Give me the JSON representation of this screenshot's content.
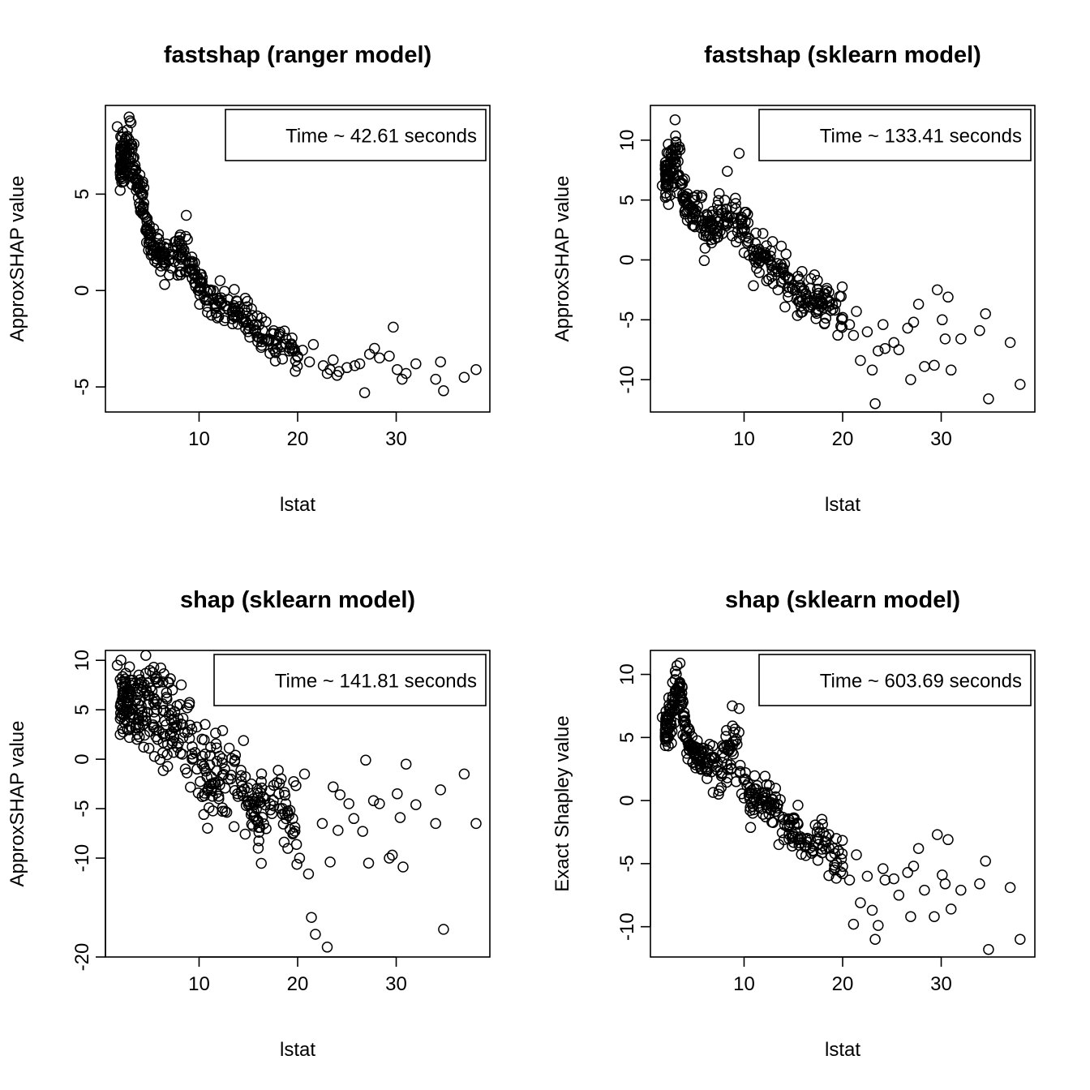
{
  "chart_data": [
    {
      "type": "scatter",
      "title": "fastshap (ranger model)",
      "xlabel": "lstat",
      "ylabel": "ApproxSHAP value",
      "legend": "Time ~ 42.61 seconds",
      "legend_position": "top-right",
      "xlim": [
        0.5,
        39.5
      ],
      "ylim": [
        -6.3,
        9.6
      ],
      "xticks": [
        10,
        20,
        30
      ],
      "yticks": [
        -5,
        0,
        5
      ],
      "grid": false,
      "seed": 11,
      "x": [
        1.7,
        2.0,
        2.1,
        2.3,
        2.5,
        2.7,
        2.9,
        3.0,
        3.1,
        3.2,
        3.3,
        3.4,
        3.5,
        3.6,
        3.8,
        4.0,
        4.3,
        4.6,
        4.8,
        5.0,
        5.3,
        5.6,
        6.0,
        6.5,
        7.0,
        7.5,
        8.0,
        8.7,
        9.0,
        9.5,
        10.0,
        10.5,
        11.0,
        11.6,
        12.3,
        13.0,
        13.7,
        14.3,
        15.0,
        15.7,
        16.4,
        17.1,
        17.8,
        18.4,
        19.2,
        20.0,
        20.5,
        21.2,
        21.6,
        22.6,
        23.0,
        23.3,
        23.6,
        24.0,
        24.2,
        25.0,
        25.8,
        26.3,
        26.8,
        27.3,
        27.8,
        28.3,
        29.3,
        29.7,
        30.1,
        30.6,
        31.0,
        32.0,
        34.0,
        34.5,
        34.8,
        36.9,
        38.1
      ],
      "y": [
        8.5,
        5.2,
        7.5,
        6.3,
        6.0,
        8.0,
        9.0,
        6.7,
        8.7,
        5.5,
        6.3,
        7.6,
        6.5,
        5.8,
        5.3,
        6.0,
        4.3,
        3.8,
        3.2,
        2.7,
        2.4,
        2.2,
        2.0,
        1.8,
        1.6,
        1.5,
        1.3,
        3.9,
        1.0,
        0.8,
        0.0,
        -0.3,
        -0.5,
        -0.7,
        -0.6,
        -1.0,
        -1.1,
        -1.4,
        -1.8,
        -2.1,
        -2.5,
        -2.6,
        -2.6,
        -2.8,
        -3.0,
        -3.4,
        -3.1,
        -3.7,
        -2.8,
        -3.9,
        -4.3,
        -4.1,
        -3.6,
        -4.4,
        -4.2,
        -4.0,
        -3.9,
        -3.8,
        -5.3,
        -3.3,
        -3.0,
        -3.5,
        -3.4,
        -1.9,
        -4.1,
        -4.6,
        -4.3,
        -3.8,
        -4.6,
        -3.7,
        -5.2,
        -4.5,
        -4.1
      ]
    },
    {
      "type": "scatter",
      "title": "fastshap (sklearn model)",
      "xlabel": "lstat",
      "ylabel": "ApproxSHAP value",
      "legend": "Time ~ 133.41 seconds",
      "legend_position": "top-right",
      "xlim": [
        0.5,
        39.5
      ],
      "ylim": [
        -12.7,
        12.9
      ],
      "xticks": [
        10,
        20,
        30
      ],
      "yticks": [
        -10,
        -5,
        0,
        5,
        10
      ],
      "grid": false,
      "seed": 23,
      "x": [
        1.7,
        2.0,
        2.5,
        2.8,
        3.0,
        3.2,
        3.5,
        3.8,
        4.0,
        4.3,
        4.6,
        5.0,
        5.4,
        5.8,
        6.3,
        6.8,
        7.3,
        7.8,
        8.3,
        8.8,
        9.2,
        9.5,
        10.0,
        10.5,
        11.0,
        11.6,
        12.2,
        12.8,
        13.4,
        14.0,
        14.6,
        15.2,
        15.8,
        16.4,
        17.0,
        17.5,
        18.0,
        18.6,
        19.2,
        20.0,
        20.7,
        21.1,
        21.4,
        21.8,
        22.5,
        23.0,
        23.3,
        23.6,
        24.1,
        24.3,
        25.2,
        25.7,
        26.6,
        26.9,
        27.2,
        27.7,
        28.3,
        29.3,
        29.6,
        30.1,
        30.4,
        30.7,
        31.0,
        32.0,
        33.9,
        34.5,
        34.8,
        37.0,
        38.0
      ],
      "y": [
        6.2,
        7.6,
        5.4,
        9.2,
        11.7,
        5.6,
        9.2,
        5.2,
        5.0,
        4.7,
        4.4,
        4.0,
        3.6,
        3.3,
        3.1,
        2.8,
        2.4,
        2.2,
        7.4,
        2.0,
        1.5,
        8.9,
        0.6,
        0.4,
        0.1,
        -0.1,
        0.3,
        -0.5,
        -0.3,
        -1.6,
        -2.3,
        -2.5,
        -3.1,
        -3.3,
        -3.6,
        -3.0,
        -3.6,
        -2.7,
        -4.2,
        -4.8,
        -5.4,
        -6.3,
        -4.3,
        -8.4,
        -6.0,
        -9.2,
        -12.0,
        -7.6,
        -5.4,
        -7.4,
        -6.9,
        -7.5,
        -5.7,
        -10.0,
        -5.2,
        -3.7,
        -8.9,
        -8.8,
        -2.5,
        -5.0,
        -6.6,
        -3.1,
        -9.2,
        -6.6,
        -5.9,
        -4.5,
        -11.6,
        -6.9,
        -10.4
      ]
    },
    {
      "type": "scatter",
      "title": "shap (sklearn model)",
      "xlabel": "lstat",
      "ylabel": "ApproxSHAP value",
      "legend": "Time ~ 141.81 seconds",
      "legend_position": "top-right",
      "xlim": [
        0.5,
        39.5
      ],
      "ylim": [
        -20.0,
        11.0
      ],
      "xticks": [
        10,
        20,
        30
      ],
      "yticks": [
        -20,
        -10,
        -5,
        0,
        5,
        10
      ],
      "grid": false,
      "seed": 37,
      "x": [
        1.7,
        2.0,
        2.3,
        2.7,
        3.0,
        3.3,
        3.6,
        4.0,
        4.3,
        4.6,
        5.0,
        5.4,
        5.8,
        6.3,
        6.8,
        7.3,
        7.8,
        8.3,
        8.8,
        9.3,
        9.8,
        10.3,
        10.8,
        11.4,
        12.0,
        12.6,
        13.2,
        13.9,
        14.6,
        15.3,
        16.0,
        16.7,
        17.4,
        18.1,
        18.8,
        19.5,
        20.2,
        20.7,
        21.1,
        21.4,
        21.8,
        22.5,
        23.0,
        23.3,
        23.6,
        24.1,
        24.3,
        25.2,
        25.7,
        26.6,
        26.9,
        27.2,
        27.7,
        28.3,
        29.3,
        29.6,
        30.1,
        30.4,
        30.7,
        31.0,
        32.0,
        34.0,
        34.5,
        34.8,
        36.9,
        38.1
      ],
      "y": [
        9.5,
        2.5,
        6.5,
        3.8,
        8.0,
        4.5,
        6.0,
        5.0,
        3.5,
        10.5,
        2.8,
        9.3,
        2.0,
        5.6,
        1.5,
        7.0,
        1.2,
        0.5,
        5.2,
        0.0,
        -1.0,
        -0.5,
        -1.8,
        -2.5,
        -4.0,
        -1.0,
        -2.0,
        -3.5,
        -3.0,
        -2.5,
        -9.0,
        -4.0,
        -5.5,
        -3.5,
        -4.5,
        -6.0,
        -10.0,
        -1.5,
        -11.6,
        -16.0,
        -17.7,
        -6.5,
        -19.0,
        -10.4,
        -2.8,
        -7.2,
        -3.6,
        -4.5,
        -6.0,
        -7.3,
        -0.1,
        -10.5,
        -4.2,
        -4.5,
        -10.0,
        -9.7,
        -3.5,
        -5.9,
        -10.9,
        -0.5,
        -4.6,
        -6.5,
        -3.1,
        -17.2,
        -1.5,
        -6.5
      ]
    },
    {
      "type": "scatter",
      "title": "shap (sklearn model)",
      "xlabel": "lstat",
      "ylabel": "Exact Shapley value",
      "legend": "Time ~ 603.69 seconds",
      "legend_position": "top-right",
      "xlim": [
        0.5,
        39.5
      ],
      "ylim": [
        -12.4,
        11.9
      ],
      "xticks": [
        10,
        20,
        30
      ],
      "yticks": [
        -10,
        -5,
        0,
        5,
        10
      ],
      "grid": false,
      "seed": 53,
      "x": [
        1.7,
        2.0,
        2.3,
        2.7,
        3.0,
        3.2,
        3.5,
        3.8,
        4.0,
        4.3,
        4.6,
        5.0,
        5.4,
        5.8,
        6.3,
        6.8,
        7.3,
        7.8,
        8.3,
        8.8,
        9.2,
        9.5,
        10.0,
        10.5,
        11.0,
        11.6,
        12.2,
        12.8,
        13.4,
        14.0,
        14.6,
        15.2,
        15.8,
        16.4,
        17.0,
        17.5,
        18.0,
        18.6,
        19.2,
        20.0,
        20.7,
        21.1,
        21.4,
        21.8,
        22.5,
        23.0,
        23.3,
        23.6,
        24.1,
        24.3,
        25.2,
        25.7,
        26.6,
        26.9,
        27.2,
        27.7,
        28.3,
        29.3,
        29.6,
        30.1,
        30.4,
        30.7,
        31.0,
        32.0,
        33.9,
        34.5,
        34.8,
        37.0,
        38.0
      ],
      "y": [
        6.6,
        5.1,
        6.4,
        5.5,
        8.2,
        10.7,
        10.9,
        5.2,
        5.0,
        4.6,
        4.3,
        4.0,
        3.5,
        3.3,
        3.0,
        2.8,
        2.4,
        2.2,
        1.8,
        7.5,
        1.5,
        7.3,
        0.2,
        0.4,
        0.1,
        -0.2,
        0.2,
        -0.5,
        -0.3,
        -1.5,
        -2.0,
        -2.5,
        -3.0,
        -3.3,
        -3.6,
        -3.0,
        -3.6,
        -2.7,
        -4.2,
        -5.8,
        -6.3,
        -9.8,
        -4.3,
        -8.1,
        -6.0,
        -8.7,
        -11.0,
        -9.9,
        -5.4,
        -6.3,
        -6.2,
        -7.5,
        -5.7,
        -9.2,
        -5.2,
        -3.8,
        -7.1,
        -9.2,
        -2.7,
        -5.9,
        -6.6,
        -3.1,
        -8.6,
        -7.1,
        -6.6,
        -4.8,
        -11.8,
        -6.9,
        -11.0
      ]
    }
  ]
}
